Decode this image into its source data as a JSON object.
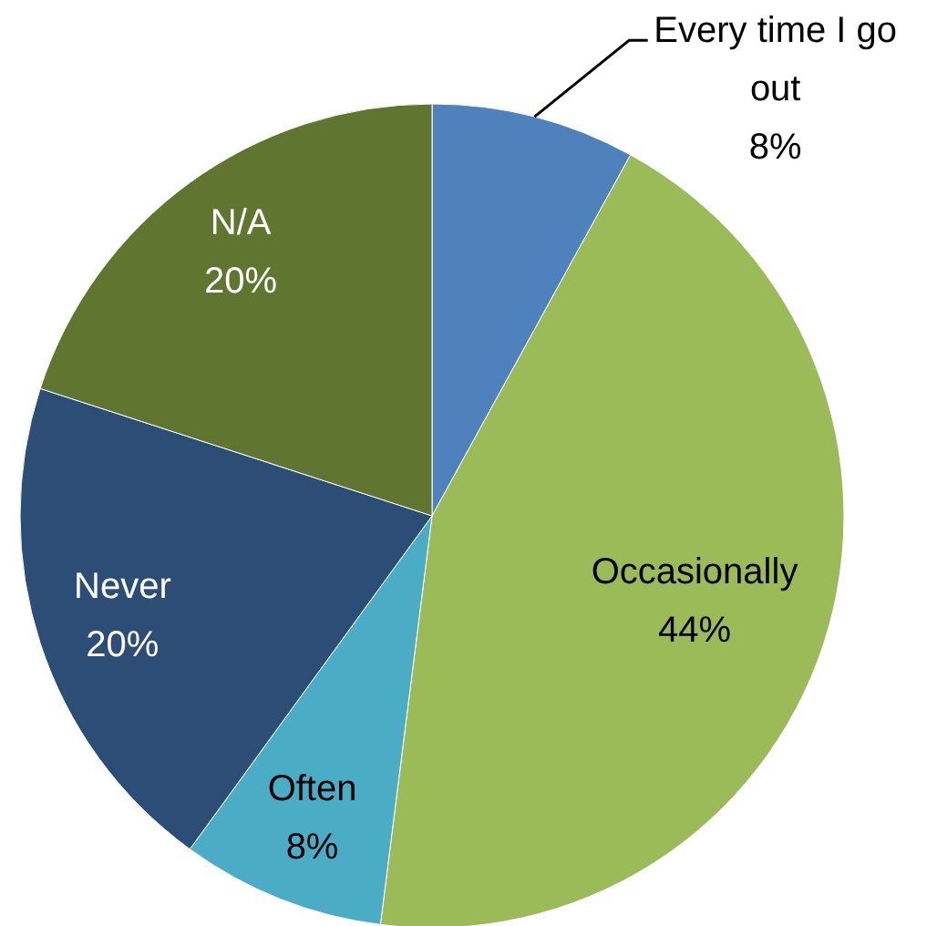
{
  "chart_data": {
    "type": "pie",
    "categories": [
      "Every time I go out",
      "Occasionally",
      "Often",
      "Never",
      "N/A"
    ],
    "values": [
      8,
      44,
      8,
      20,
      20
    ],
    "colors": [
      "#4f81bd",
      "#9bbb59",
      "#4bacc6",
      "#2c4d75",
      "#5f7530"
    ],
    "value_labels": [
      "8%",
      "44%",
      "8%",
      "20%",
      "20%"
    ]
  }
}
